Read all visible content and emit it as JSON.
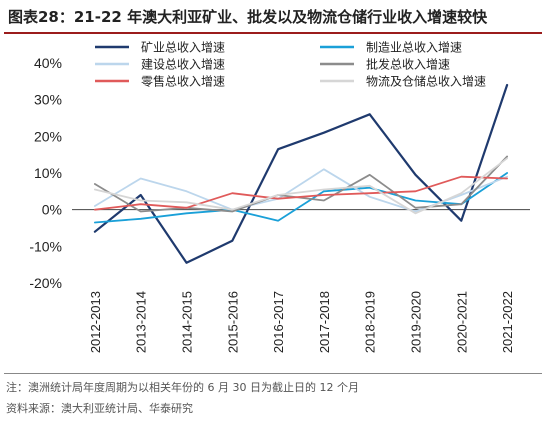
{
  "title": "图表28：21-22 年澳大利亚矿业、批发以及物流仓储行业收入增速较快",
  "chart_data": {
    "type": "line",
    "categories": [
      "2012-2013",
      "2013-2014",
      "2014-2015",
      "2015-2016",
      "2016-2017",
      "2017-2018",
      "2018-2019",
      "2019-2020",
      "2020-2021",
      "2021-2022"
    ],
    "ylim": [
      -20,
      40
    ],
    "yticks": [
      "-20%",
      "-10%",
      "0%",
      "10%",
      "20%",
      "30%",
      "40%"
    ],
    "ytick_values": [
      -20,
      -10,
      0,
      10,
      20,
      30,
      40
    ],
    "legend_position": "top",
    "series": [
      {
        "name": "矿业总收入增速",
        "color": "#1f3a6e",
        "width": 2.2,
        "values": [
          -6,
          4,
          -14.5,
          -8.5,
          16.5,
          21,
          26,
          9.5,
          -3,
          34
        ]
      },
      {
        "name": "制造业总收入增速",
        "color": "#1aa0d8",
        "width": 1.8,
        "values": [
          -3.5,
          -2.5,
          -1,
          0,
          -3,
          5,
          6,
          2.5,
          1.5,
          10
        ]
      },
      {
        "name": "建设总收入增速",
        "color": "#bcd6ec",
        "width": 1.8,
        "values": [
          1,
          8.5,
          5,
          0,
          3,
          11,
          3.5,
          -0.5,
          4,
          9
        ]
      },
      {
        "name": "批发总收入增速",
        "color": "#8c8c8c",
        "width": 1.8,
        "values": [
          7,
          -0.5,
          0.5,
          -0.5,
          4,
          2.5,
          9.5,
          0.5,
          1.5,
          14.5
        ]
      },
      {
        "name": "零售总收入增速",
        "color": "#e05a5a",
        "width": 1.8,
        "values": [
          0,
          1.5,
          0.5,
          4.5,
          3,
          4,
          4.5,
          5,
          9,
          8.5
        ]
      },
      {
        "name": "物流及仓储总收入增速",
        "color": "#d6d6d6",
        "width": 1.8,
        "values": [
          5.5,
          2.5,
          2,
          0,
          4,
          5.5,
          6.5,
          -1,
          4.5,
          14
        ]
      }
    ]
  },
  "notes": [
    "注：澳洲统计局年度周期为以相关年份的 6 月 30 日为截止日的 12 个月",
    "资料来源：澳大利亚统计局、华泰研究"
  ]
}
